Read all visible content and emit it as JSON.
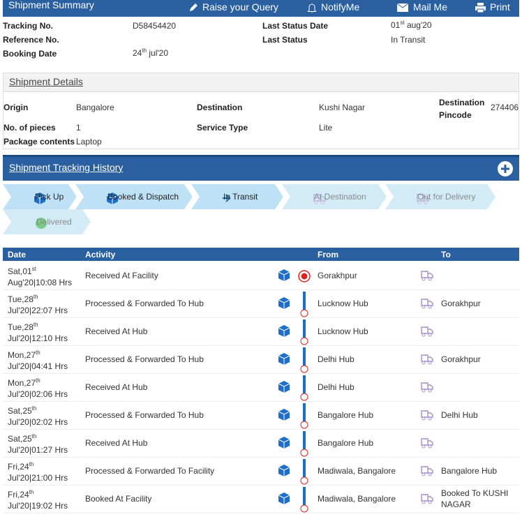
{
  "header": {
    "title": "Shipment Summary",
    "actions": [
      "Raise your Query",
      "NotifyMe",
      "Mail Me",
      "Print"
    ]
  },
  "summary": {
    "tracking_label": "Tracking No.",
    "tracking_value": "D58454420",
    "reference_label": "Reference No.",
    "booking_label": "Booking Date",
    "booking_date": {
      "day": "24",
      "sup": "th",
      "rest": "jul'20"
    },
    "last_status_date_label": "Last Status Date",
    "last_status_date": {
      "day": "01",
      "sup": "st",
      "rest": "aug'20"
    },
    "last_status_label": "Last Status",
    "last_status": "In Transit"
  },
  "details": {
    "title": "Shipment Details",
    "origin_label": "Origin",
    "origin": "Bangalore",
    "destination_label": "Destination",
    "destination": "Kushi Nagar",
    "pincode_label": "Destination Pincode",
    "pincode": "274406",
    "pieces_label": "No. of pieces",
    "pieces": "1",
    "service_label": "Service Type",
    "service": "Lite",
    "contents_label": "Package contents",
    "contents": "Laptop"
  },
  "history": {
    "title": "Shipment Tracking History",
    "steps": [
      {
        "label": "Pick Up",
        "active": true
      },
      {
        "label": "Booked & Dispatch",
        "active": true
      },
      {
        "label": "In Transit",
        "active": true
      },
      {
        "label": "At Destination",
        "active": false
      },
      {
        "label": "Out for Delivery",
        "active": false
      },
      {
        "label": "Delivered",
        "active": false
      }
    ],
    "columns": [
      "Date",
      "Activity",
      "From",
      "To"
    ],
    "rows": [
      {
        "day": "Sat,01",
        "sup": "st",
        "time": "Aug'20|10:08 Hrs",
        "activity": "Received At Facility",
        "from": "Gorakhpur",
        "current": true
      },
      {
        "day": "Tue,28",
        "sup": "th",
        "time": "Jul'20|22:07 Hrs",
        "activity": "Processed & Forwarded To Hub",
        "from": "Lucknow Hub",
        "to": "Gorakhpur"
      },
      {
        "day": "Tue,28",
        "sup": "th",
        "time": "Jul'20|12:10 Hrs",
        "activity": "Received At Hub",
        "from": "Lucknow Hub"
      },
      {
        "day": "Mon,27",
        "sup": "th",
        "time": "Jul'20|04:41 Hrs",
        "activity": "Processed & Forwarded To Hub",
        "from": "Delhi Hub",
        "to": "Gorakhpur"
      },
      {
        "day": "Mon,27",
        "sup": "th",
        "time": "Jul'20|02:06 Hrs",
        "activity": "Received At Hub",
        "from": "Delhi Hub"
      },
      {
        "day": "Sat,25",
        "sup": "th",
        "time": "Jul'20|02:02 Hrs",
        "activity": "Processed & Forwarded To Hub",
        "from": "Bangalore Hub",
        "to": "Delhi Hub"
      },
      {
        "day": "Sat,25",
        "sup": "th",
        "time": "Jul'20|01:27 Hrs",
        "activity": "Received At Hub",
        "from": "Bangalore Hub"
      },
      {
        "day": "Fri,24",
        "sup": "th",
        "time": "Jul'20|21:00 Hrs",
        "activity": "Processed & Forwarded To Facility",
        "from": "Madiwala, Bangalore",
        "to": "Bangalore Hub"
      },
      {
        "day": "Fri,24",
        "sup": "th",
        "time": "Jul'20|19:02 Hrs",
        "activity": "Booked At Facility",
        "from": "Madiwala, Bangalore",
        "to": "Booked To KUSHI NAGAR"
      }
    ]
  }
}
